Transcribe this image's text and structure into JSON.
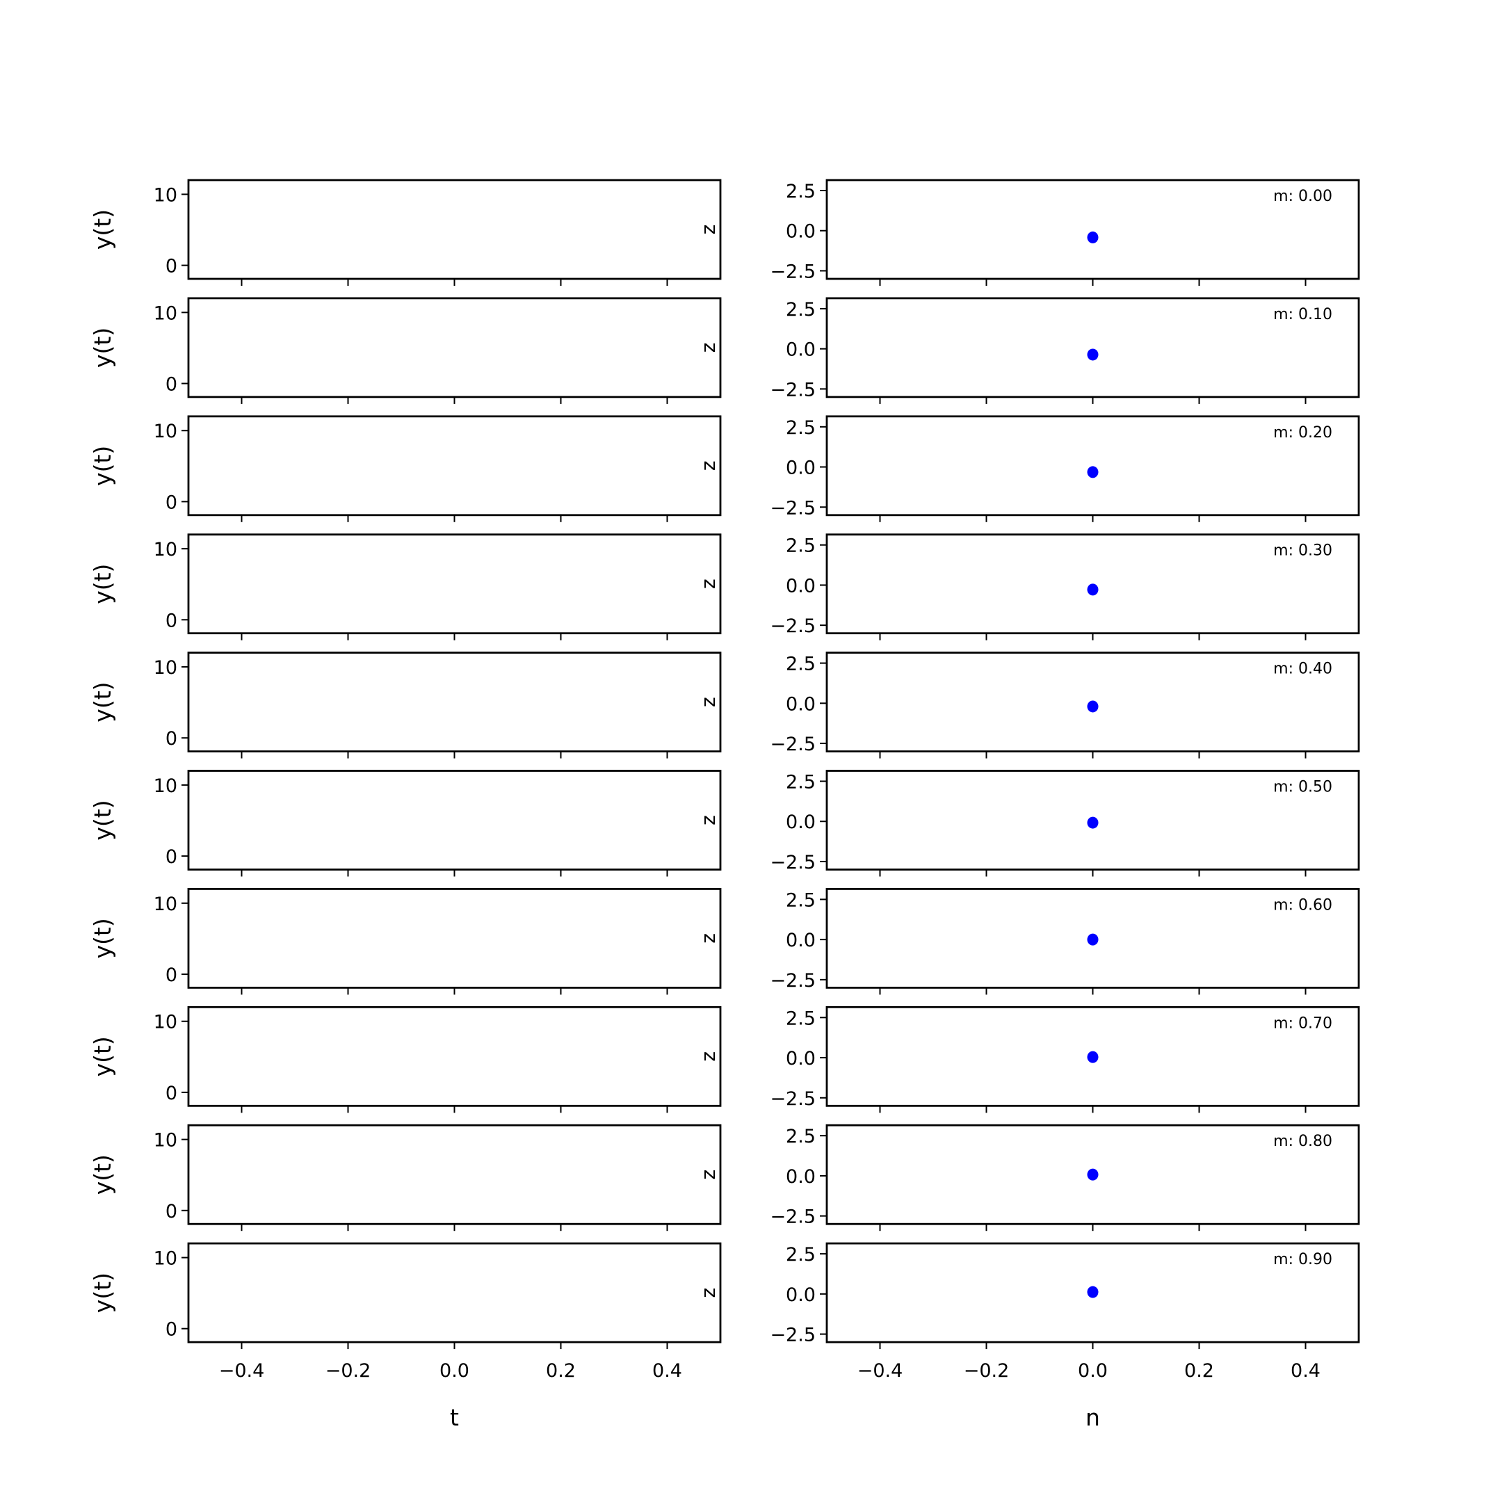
{
  "chart_data": [
    {
      "type": "line",
      "panel": "left column (10 stacked empty panels)",
      "rows": 10,
      "xlabel": "t",
      "ylabel": "y(t)",
      "inner_label": "z",
      "xlim": [
        -0.5,
        0.5
      ],
      "ylim": [
        -1.9,
        12
      ],
      "xticks": [
        -0.4,
        -0.2,
        0.0,
        0.2,
        0.4
      ],
      "xtick_labels": [
        "−0.4",
        "−0.2",
        "0.0",
        "0.2",
        "0.4"
      ],
      "yticks": [
        0,
        10
      ],
      "ytick_labels": [
        "0",
        "10"
      ],
      "series": [],
      "grid": false
    },
    {
      "type": "scatter",
      "panel": "right column (10 stacked panels)",
      "rows": 10,
      "xlabel": "n",
      "xlim": [
        -0.5,
        0.5
      ],
      "ylim": [
        -3.0,
        3.15
      ],
      "xticks": [
        -0.4,
        -0.2,
        0.0,
        0.2,
        0.4
      ],
      "xtick_labels": [
        "−0.4",
        "−0.2",
        "0.0",
        "0.2",
        "0.4"
      ],
      "yticks": [
        -2.5,
        0.0,
        2.5
      ],
      "ytick_labels": [
        "−2.5",
        "0.0",
        "2.5"
      ],
      "annotations": [
        "m: 0.00",
        "m: 0.10",
        "m: 0.20",
        "m: 0.30",
        "m: 0.40",
        "m: 0.50",
        "m: 0.60",
        "m: 0.70",
        "m: 0.80",
        "m: 0.90"
      ],
      "points": [
        {
          "x": 0,
          "y": -0.42
        },
        {
          "x": 0,
          "y": -0.36
        },
        {
          "x": 0,
          "y": -0.32
        },
        {
          "x": 0,
          "y": -0.28
        },
        {
          "x": 0,
          "y": -0.2
        },
        {
          "x": 0,
          "y": -0.08
        },
        {
          "x": 0,
          "y": 0.0
        },
        {
          "x": 0,
          "y": 0.04
        },
        {
          "x": 0,
          "y": 0.08
        },
        {
          "x": 0,
          "y": 0.12
        }
      ],
      "marker_color": "#0000ff",
      "grid": false
    }
  ]
}
